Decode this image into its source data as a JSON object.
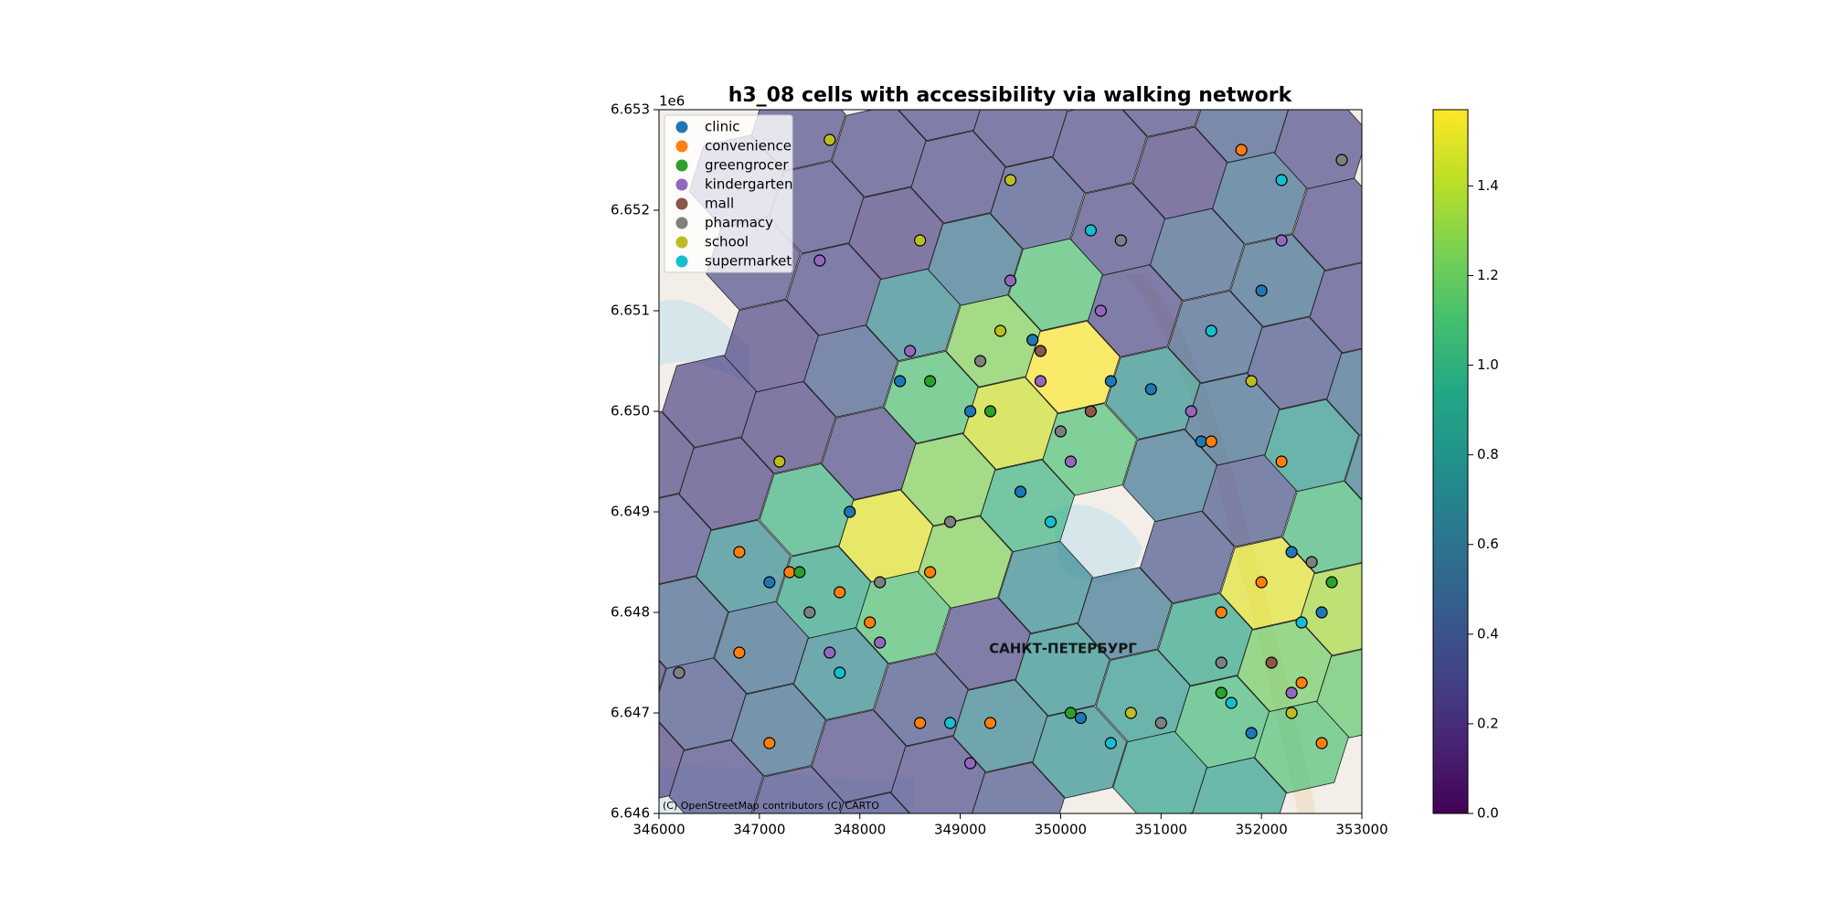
{
  "chart_data": {
    "type": "map",
    "title": "h3_08 cells with accessibility via walking network",
    "xlim": [
      346000,
      353000
    ],
    "xticks": [
      346000,
      347000,
      348000,
      349000,
      350000,
      351000,
      352000,
      353000
    ],
    "ylim": [
      6646000,
      6653000
    ],
    "yticks": [
      {
        "value": 6646000,
        "label": "6.646"
      },
      {
        "value": 6647000,
        "label": "6.647"
      },
      {
        "value": 6648000,
        "label": "6.648"
      },
      {
        "value": 6649000,
        "label": "6.649"
      },
      {
        "value": 6650000,
        "label": "6.650"
      },
      {
        "value": 6651000,
        "label": "6.651"
      },
      {
        "value": 6652000,
        "label": "6.652"
      },
      {
        "value": 6653000,
        "label": "6.653"
      }
    ],
    "y_offset_label": "1e6",
    "colormap": "viridis",
    "clim": [
      0,
      1.57
    ],
    "cticks": [
      {
        "value": 0,
        "label": "0.0"
      },
      0.2,
      0.4,
      0.6,
      0.8,
      {
        "value": 1,
        "label": "1.0"
      },
      1.2,
      1.4
    ],
    "legend": "upper left",
    "attribution": "(C) OpenStreetMap contributors (C) CARTO",
    "annotations": [
      "САНКТ-ПЕТЕРБУРГ"
    ],
    "cells": {
      "x": [
        345780,
        346400,
        347020,
        347640,
        348260,
        348880,
        349500,
        350120,
        350740,
        351360,
        351980,
        352600,
        345600,
        346220,
        346840,
        347470,
        348090,
        348710,
        349330,
        349950,
        350570,
        351190,
        351810,
        346050,
        346670,
        347290,
        347910,
        348530,
        349150,
        349770,
        350390,
        351010,
        345880,
        346500,
        347120,
        347740,
        348360,
        348980,
        349600,
        346940,
        347570,
        348190,
        348810,
        346770,
        347390,
        346570,
        347190,
        347810,
        348430,
        349050,
        349670,
        350290,
        350920,
        351540,
        352160,
        352780,
        347370,
        347990,
        348610,
        349230,
        349850,
        351090,
        351710,
        352330,
        352950,
        348160,
        348780,
        349400,
        350020,
        350640,
        351260,
        351880,
        352500,
        353120,
        349570,
        350190,
        350820,
        351440,
        352060,
        352680,
        353300,
        350990,
        351610,
        352230,
        352850,
        351780,
        352400,
        353020
      ],
      "y": [
        6646530,
        6647090,
        6647650,
        6648200,
        6648760,
        6649320,
        6649880,
        6650440,
        6651000,
        6651560,
        6652120,
        6652670,
        6647340,
        6647900,
        6648460,
        6649020,
        6649580,
        6650140,
        6650700,
        6651260,
        6651810,
        6652370,
        6652930,
        6648720,
        6649280,
        6649840,
        6650400,
        6650960,
        6651510,
        6652070,
        6652630,
        6653190,
        6649540,
        6650100,
        6650650,
        6651210,
        6651770,
        6652330,
        6652890,
        6651470,
        6652030,
        6652590,
        6653150,
        6652290,
        6652850,
        6646270,
        6646830,
        6647390,
        6647950,
        6648500,
        6649060,
        6649620,
        6650180,
        6650740,
        6651300,
        6651860,
        6646010,
        6646570,
        6647130,
        6647690,
        6648250,
        6649360,
        6649920,
        6650480,
        6651040,
        6645750,
        6646310,
        6646870,
        6647430,
        6647990,
        6648550,
        6649110,
        6649660,
        6650220,
        6646050,
        6646610,
        6647170,
        6647730,
        6648290,
        6648850,
        6649410,
        6646360,
        6646910,
        6647470,
        6648030,
        6646100,
        6646660,
        6647210
      ],
      "values": [
        0.25,
        0.35,
        0.5,
        0.9,
        1.5,
        1.25,
        1.45,
        1.57,
        0.3,
        0.45,
        0.5,
        0.3,
        0.25,
        0.45,
        0.7,
        1.0,
        0.3,
        1.1,
        1.25,
        1.1,
        0.3,
        0.25,
        0.4,
        0.3,
        0.25,
        0.25,
        0.4,
        0.7,
        0.55,
        0.35,
        0.3,
        0.3,
        0.25,
        0.25,
        0.25,
        0.3,
        0.25,
        0.3,
        0.3,
        0.3,
        0.3,
        0.3,
        0.3,
        0.3,
        0.3,
        0.3,
        0.5,
        0.7,
        1.1,
        1.25,
        1.0,
        1.1,
        0.75,
        0.45,
        0.5,
        0.3,
        0.3,
        0.3,
        0.35,
        0.3,
        0.7,
        0.55,
        0.5,
        0.35,
        0.3,
        0.3,
        0.3,
        0.65,
        0.75,
        0.55,
        0.35,
        0.35,
        0.8,
        0.5,
        0.35,
        0.75,
        0.8,
        0.9,
        1.5,
        1.05,
        0.6,
        0.85,
        1.05,
        1.2,
        1.35,
        0.85,
        1.1,
        1.15
      ]
    },
    "series": [
      {
        "name": "clinic",
        "color": "#1f77b4",
        "x": [
          349720,
          350500,
          349100,
          347900,
          351400,
          352300,
          350200,
          348400,
          352000,
          347100,
          349600,
          351900,
          352600,
          350900
        ],
        "y": [
          6650710,
          6650300,
          6650000,
          6649000,
          6649700,
          6648600,
          6646950,
          6650300,
          6651200,
          6648300,
          6649200,
          6646800,
          6648000,
          6650220
        ]
      },
      {
        "name": "convenience",
        "color": "#ff7f0e",
        "x": [
          347800,
          348100,
          347300,
          346800,
          352000,
          351600,
          352400,
          352600,
          346800,
          348700,
          351500,
          352200,
          347100,
          351800,
          349300,
          348600
        ],
        "y": [
          6648200,
          6647900,
          6648400,
          6647600,
          6648300,
          6648000,
          6647300,
          6646700,
          6648600,
          6648400,
          6649700,
          6649500,
          6646700,
          6652600,
          6646900,
          6646900
        ]
      },
      {
        "name": "greengrocer",
        "color": "#2ca02c",
        "x": [
          349300,
          347400,
          352700,
          351600,
          348700,
          350100
        ],
        "y": [
          6650000,
          6648400,
          6648300,
          6647200,
          6650300,
          6647000
        ]
      },
      {
        "name": "kindergarten",
        "color": "#9467bd",
        "x": [
          349800,
          350400,
          348200,
          347700,
          350100,
          352300,
          347600,
          349100,
          351300,
          348500,
          352200,
          349500
        ],
        "y": [
          6650300,
          6651000,
          6647700,
          6647600,
          6649500,
          6647200,
          6651500,
          6646500,
          6650000,
          6650600,
          6651700,
          6651300
        ]
      },
      {
        "name": "mall",
        "color": "#8c564b",
        "x": [
          349800,
          350300,
          352100
        ],
        "y": [
          6650600,
          6650000,
          6647500
        ]
      },
      {
        "name": "pharmacy",
        "color": "#7f7f7f",
        "x": [
          350600,
          349200,
          348200,
          351600,
          352500,
          350000,
          346200,
          352800,
          348900,
          351000,
          347500
        ],
        "y": [
          6651700,
          6650500,
          6648300,
          6647500,
          6648500,
          6649800,
          6647400,
          6652500,
          6648900,
          6646900,
          6648000
        ]
      },
      {
        "name": "school",
        "color": "#bcbd22",
        "x": [
          349400,
          347700,
          351900,
          352300,
          348600,
          349500,
          350700,
          347200
        ],
        "y": [
          6650800,
          6652700,
          6650300,
          6647000,
          6651700,
          6652300,
          6647000,
          6649500
        ]
      },
      {
        "name": "supermarket",
        "color": "#17becf",
        "x": [
          352200,
          350300,
          347800,
          348900,
          350500,
          351700,
          352400,
          351500,
          349900
        ],
        "y": [
          6652300,
          6651800,
          6647400,
          6646900,
          6646700,
          6647100,
          6647900,
          6650800,
          6648900
        ]
      }
    ]
  }
}
